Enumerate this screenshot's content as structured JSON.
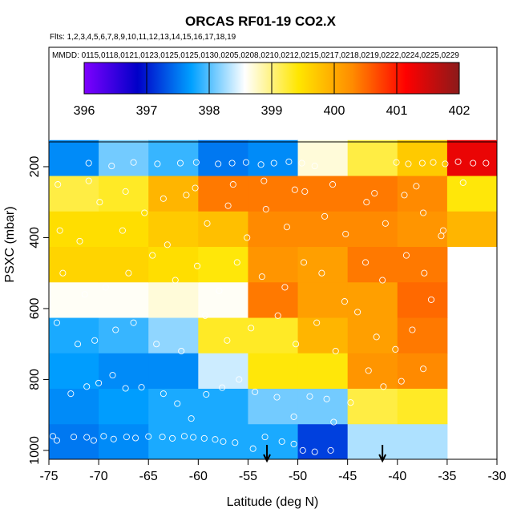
{
  "chart_data": {
    "type": "heatmap",
    "title": "ORCAS RF01-19 CO2.X",
    "flights_label": "Flts: 1,2,3,4,5,6,7,8,9,10,11,12,13,14,15,16,17,18,19",
    "dates_label": "MMDD: 0115,0118,0121,0123,0125,0125,0130,0205,0208,0210,0212,0215,0217,0218,0219,0222,0224,0225,0229",
    "xlabel": "Latitude (deg N)",
    "ylabel": "PSXC (mbar)",
    "xlim": [
      -75,
      -30
    ],
    "ylim": [
      1025,
      100
    ],
    "x_ticks": [
      -75,
      -70,
      -65,
      -60,
      -55,
      -50,
      -45,
      -40,
      -35,
      -30
    ],
    "y_ticks": [
      200,
      400,
      600,
      800,
      1000
    ],
    "colorbar": {
      "min": 396,
      "max": 402,
      "ticks": [
        396,
        397,
        398,
        399,
        400,
        401,
        402
      ],
      "colors": [
        "#7F00FF",
        "#0000C8",
        "#00A0FF",
        "#FFFFFF",
        "#FFE600",
        "#FF8C00",
        "#FF0000",
        "#8B1A1A"
      ]
    },
    "lat_bins": [
      -75,
      -70,
      -65,
      -60,
      -55,
      -50,
      -45,
      -40,
      -35,
      -30
    ],
    "pres_bins": [
      1025,
      925,
      825,
      725,
      625,
      525,
      425,
      325,
      225,
      125
    ],
    "cells": [
      [
        397.5,
        397.6,
        397.8,
        397.8,
        397.8,
        397.2,
        398.3,
        398.3,
        null
      ],
      [
        397.6,
        397.7,
        397.8,
        397.8,
        398.1,
        398.1,
        399.2,
        399.3,
        null
      ],
      [
        397.7,
        397.6,
        397.6,
        398.4,
        399.4,
        399.4,
        400.2,
        400.3,
        null
      ],
      [
        397.8,
        397.9,
        398.2,
        399.3,
        399.3,
        399.9,
        400.1,
        400.4,
        null
      ],
      [
        398.6,
        398.6,
        398.7,
        398.6,
        400.4,
        400.1,
        400.1,
        400.5,
        null
      ],
      [
        399.6,
        399.6,
        399.5,
        399.4,
        400.2,
        400.1,
        400.4,
        400.4,
        null
      ],
      [
        399.5,
        399.5,
        399.7,
        399.8,
        400.3,
        400.3,
        400.3,
        400.2,
        399.9
      ],
      [
        399.2,
        399.3,
        399.9,
        400.4,
        400.4,
        400.4,
        400.4,
        400.3,
        399.4
      ],
      [
        397.6,
        398.1,
        397.9,
        397.5,
        397.6,
        398.7,
        399.2,
        399.7,
        401.3
      ]
    ],
    "observations": [
      [
        -74.6,
        960
      ],
      [
        -74.2,
        972
      ],
      [
        -72.5,
        962
      ],
      [
        -71.2,
        963
      ],
      [
        -70.5,
        972
      ],
      [
        -69.5,
        960
      ],
      [
        -68.5,
        968
      ],
      [
        -67.2,
        962
      ],
      [
        -66.3,
        965
      ],
      [
        -65.0,
        961
      ],
      [
        -63.6,
        962
      ],
      [
        -62.6,
        966
      ],
      [
        -61.4,
        960
      ],
      [
        -60.5,
        963
      ],
      [
        -59.4,
        966
      ],
      [
        -58.3,
        969
      ],
      [
        -57.5,
        975
      ],
      [
        -56.3,
        978
      ],
      [
        -54.5,
        995
      ],
      [
        -53.3,
        962
      ],
      [
        -51.6,
        975
      ],
      [
        -50.4,
        982
      ],
      [
        -49.5,
        1000
      ],
      [
        -48.3,
        1004
      ],
      [
        -46.7,
        1000
      ],
      [
        -72.8,
        840
      ],
      [
        -71.2,
        820
      ],
      [
        -70.0,
        810
      ],
      [
        -68.6,
        788
      ],
      [
        -67.3,
        825
      ],
      [
        -65.7,
        822
      ],
      [
        -63.5,
        840
      ],
      [
        -62.1,
        868
      ],
      [
        -60.7,
        910
      ],
      [
        -59.2,
        842
      ],
      [
        -57.6,
        823
      ],
      [
        -55.9,
        800
      ],
      [
        -54.3,
        835
      ],
      [
        -52.1,
        850
      ],
      [
        -50.4,
        905
      ],
      [
        -48.8,
        848
      ],
      [
        -47.1,
        855
      ],
      [
        -46.4,
        920
      ],
      [
        -44.7,
        865
      ],
      [
        -42.9,
        775
      ],
      [
        -41.4,
        820
      ],
      [
        -39.6,
        805
      ],
      [
        -37.4,
        770
      ],
      [
        -74.2,
        640
      ],
      [
        -72.1,
        700
      ],
      [
        -70.4,
        690
      ],
      [
        -68.3,
        660
      ],
      [
        -66.5,
        640
      ],
      [
        -64.2,
        700
      ],
      [
        -61.7,
        720
      ],
      [
        -59.3,
        620
      ],
      [
        -57.1,
        690
      ],
      [
        -54.7,
        655
      ],
      [
        -52.0,
        620
      ],
      [
        -50.2,
        700
      ],
      [
        -48.1,
        640
      ],
      [
        -46.2,
        720
      ],
      [
        -44.0,
        610
      ],
      [
        -42.1,
        680
      ],
      [
        -40.2,
        715
      ],
      [
        -38.5,
        660
      ],
      [
        -36.6,
        575
      ],
      [
        -73.6,
        500
      ],
      [
        -71.4,
        560
      ],
      [
        -69.3,
        540
      ],
      [
        -67.0,
        500
      ],
      [
        -64.6,
        450
      ],
      [
        -62.3,
        520
      ],
      [
        -60.1,
        480
      ],
      [
        -57.9,
        550
      ],
      [
        -56.1,
        470
      ],
      [
        -53.6,
        510
      ],
      [
        -51.3,
        540
      ],
      [
        -49.4,
        470
      ],
      [
        -47.6,
        500
      ],
      [
        -45.3,
        580
      ],
      [
        -43.2,
        470
      ],
      [
        -41.5,
        520
      ],
      [
        -39.1,
        450
      ],
      [
        -37.3,
        500
      ],
      [
        -35.4,
        380
      ],
      [
        -73.9,
        380
      ],
      [
        -71.9,
        410
      ],
      [
        -69.9,
        300
      ],
      [
        -67.6,
        380
      ],
      [
        -65.4,
        330
      ],
      [
        -63.1,
        420
      ],
      [
        -61.2,
        280
      ],
      [
        -59.1,
        360
      ],
      [
        -57.0,
        310
      ],
      [
        -55.1,
        400
      ],
      [
        -53.2,
        320
      ],
      [
        -51.1,
        370
      ],
      [
        -49.3,
        270
      ],
      [
        -47.3,
        340
      ],
      [
        -45.2,
        390
      ],
      [
        -43.1,
        300
      ],
      [
        -41.2,
        360
      ],
      [
        -39.3,
        280
      ],
      [
        -37.4,
        330
      ],
      [
        -35.6,
        395
      ],
      [
        -74.1,
        250
      ],
      [
        -71.0,
        240
      ],
      [
        -67.3,
        270
      ],
      [
        -63.5,
        290
      ],
      [
        -60.3,
        260
      ],
      [
        -56.5,
        250
      ],
      [
        -53.4,
        240
      ],
      [
        -50.3,
        265
      ],
      [
        -46.5,
        250
      ],
      [
        -42.3,
        275
      ],
      [
        -38.1,
        255
      ],
      [
        -33.4,
        245
      ],
      [
        -71.0,
        190
      ],
      [
        -68.7,
        198
      ],
      [
        -66.5,
        188
      ],
      [
        -64.1,
        192
      ],
      [
        -61.8,
        190
      ],
      [
        -60.2,
        188
      ],
      [
        -58.0,
        192
      ],
      [
        -56.6,
        190
      ],
      [
        -55.2,
        188
      ],
      [
        -53.7,
        194
      ],
      [
        -52.4,
        190
      ],
      [
        -50.9,
        186
      ],
      [
        -49.6,
        190
      ],
      [
        -48.3,
        198
      ],
      [
        -40.1,
        188
      ],
      [
        -38.9,
        192
      ],
      [
        -37.5,
        190
      ],
      [
        -36.4,
        188
      ],
      [
        -35.2,
        192
      ],
      [
        -33.9,
        186
      ],
      [
        -32.4,
        190
      ],
      [
        -31.1,
        190
      ]
    ],
    "markers": [
      {
        "label": "arrow",
        "lat": -53.1
      },
      {
        "label": "arrow",
        "lat": -41.5
      }
    ]
  }
}
